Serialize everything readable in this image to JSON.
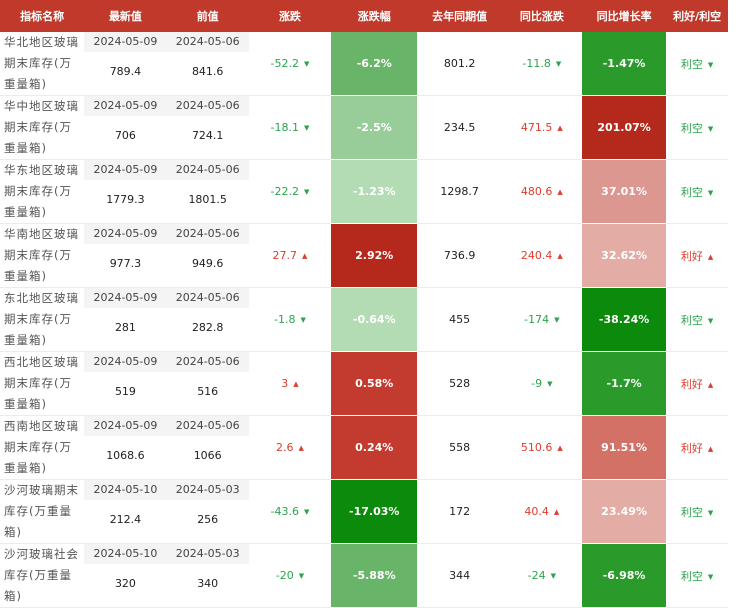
{
  "columns": [
    "指标名称",
    "最新值",
    "前值",
    "涨跌",
    "涨跌幅",
    "去年同期值",
    "同比涨跌",
    "同比增长率",
    "利好/利空"
  ],
  "colors": {
    "header_bg": "#c0392b",
    "up": "#e03c2c",
    "down": "#2ea44f",
    "deep_green": "#0b8a0b",
    "green": "#2a9a2a",
    "mid_green": "#68b468",
    "light_green": "#98cc98",
    "pale_green": "#b4dcb4",
    "deep_red": "#b5281c",
    "red": "#c33a2e",
    "mid_red": "#d47167",
    "light_red": "#dc9790",
    "pale_red": "#e3aca5"
  },
  "rows": [
    {
      "name": "华北地区玻璃期末库存(万重量箱)",
      "latest_date": "2024-05-09",
      "latest": "789.4",
      "prev_date": "2024-05-06",
      "prev": "841.6",
      "change": "-52.2",
      "change_dir": "down",
      "pct": "-6.2%",
      "pct_color": "#68b468",
      "last_year": "801.2",
      "yoy": "-11.8",
      "yoy_dir": "down",
      "yoy_pct": "-1.47%",
      "yoy_color": "#2a9a2a",
      "rating": "利空",
      "rating_dir": "down"
    },
    {
      "name": "华中地区玻璃期末库存(万重量箱)",
      "latest_date": "2024-05-09",
      "latest": "706",
      "prev_date": "2024-05-06",
      "prev": "724.1",
      "change": "-18.1",
      "change_dir": "down",
      "pct": "-2.5%",
      "pct_color": "#98cc98",
      "last_year": "234.5",
      "yoy": "471.5",
      "yoy_dir": "up",
      "yoy_pct": "201.07%",
      "yoy_color": "#b5281c",
      "rating": "利空",
      "rating_dir": "down"
    },
    {
      "name": "华东地区玻璃期末库存(万重量箱)",
      "latest_date": "2024-05-09",
      "latest": "1779.3",
      "prev_date": "2024-05-06",
      "prev": "1801.5",
      "change": "-22.2",
      "change_dir": "down",
      "pct": "-1.23%",
      "pct_color": "#b4dcb4",
      "last_year": "1298.7",
      "yoy": "480.6",
      "yoy_dir": "up",
      "yoy_pct": "37.01%",
      "yoy_color": "#dc9790",
      "rating": "利空",
      "rating_dir": "down"
    },
    {
      "name": "华南地区玻璃期末库存(万重量箱)",
      "latest_date": "2024-05-09",
      "latest": "977.3",
      "prev_date": "2024-05-06",
      "prev": "949.6",
      "change": "27.7",
      "change_dir": "up",
      "pct": "2.92%",
      "pct_color": "#b5281c",
      "last_year": "736.9",
      "yoy": "240.4",
      "yoy_dir": "up",
      "yoy_pct": "32.62%",
      "yoy_color": "#e3aca5",
      "rating": "利好",
      "rating_dir": "up"
    },
    {
      "name": "东北地区玻璃期末库存(万重量箱)",
      "latest_date": "2024-05-09",
      "latest": "281",
      "prev_date": "2024-05-06",
      "prev": "282.8",
      "change": "-1.8",
      "change_dir": "down",
      "pct": "-0.64%",
      "pct_color": "#b4dcb4",
      "last_year": "455",
      "yoy": "-174",
      "yoy_dir": "down",
      "yoy_pct": "-38.24%",
      "yoy_color": "#0b8a0b",
      "rating": "利空",
      "rating_dir": "down"
    },
    {
      "name": "西北地区玻璃期末库存(万重量箱)",
      "latest_date": "2024-05-09",
      "latest": "519",
      "prev_date": "2024-05-06",
      "prev": "516",
      "change": "3",
      "change_dir": "up",
      "pct": "0.58%",
      "pct_color": "#c33a2e",
      "last_year": "528",
      "yoy": "-9",
      "yoy_dir": "down",
      "yoy_pct": "-1.7%",
      "yoy_color": "#2a9a2a",
      "rating": "利好",
      "rating_dir": "up"
    },
    {
      "name": "西南地区玻璃期末库存(万重量箱)",
      "latest_date": "2024-05-09",
      "latest": "1068.6",
      "prev_date": "2024-05-06",
      "prev": "1066",
      "change": "2.6",
      "change_dir": "up",
      "pct": "0.24%",
      "pct_color": "#c33a2e",
      "last_year": "558",
      "yoy": "510.6",
      "yoy_dir": "up",
      "yoy_pct": "91.51%",
      "yoy_color": "#d47167",
      "rating": "利好",
      "rating_dir": "up"
    },
    {
      "name": "沙河玻璃期末库存(万重量箱)",
      "latest_date": "2024-05-10",
      "latest": "212.4",
      "prev_date": "2024-05-03",
      "prev": "256",
      "change": "-43.6",
      "change_dir": "down",
      "pct": "-17.03%",
      "pct_color": "#0b8a0b",
      "last_year": "172",
      "yoy": "40.4",
      "yoy_dir": "up",
      "yoy_pct": "23.49%",
      "yoy_color": "#e3aca5",
      "rating": "利空",
      "rating_dir": "down"
    },
    {
      "name": "沙河玻璃社会库存(万重量箱)",
      "latest_date": "2024-05-10",
      "latest": "320",
      "prev_date": "2024-05-03",
      "prev": "340",
      "change": "-20",
      "change_dir": "down",
      "pct": "-5.88%",
      "pct_color": "#68b468",
      "last_year": "344",
      "yoy": "-24",
      "yoy_dir": "down",
      "yoy_pct": "-6.98%",
      "yoy_color": "#2a9a2a",
      "rating": "利空",
      "rating_dir": "down"
    }
  ]
}
